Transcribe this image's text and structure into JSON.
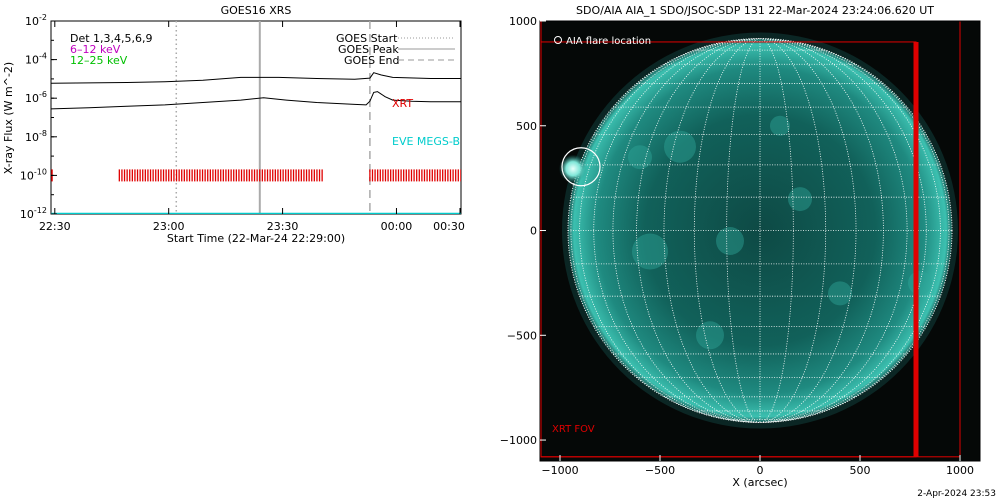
{
  "goes_chart": {
    "title": "GOES16 XRS",
    "xlabel": "Start Time (22-Mar-24 22:29:00)",
    "ylabel": "X-ray Flux (W m^-2)",
    "x_ticks": [
      "22:30",
      "23:00",
      "23:30",
      "00:00",
      "00:30"
    ],
    "y_ticks": [
      "10^-2",
      "10^-4",
      "10^-6",
      "10^-8",
      "10^-10",
      "10^-12"
    ],
    "det_label": "Det 1,3,4,5,6,9",
    "band_labels": [
      {
        "text": "6–12 keV",
        "color": "#c000c0"
      },
      {
        "text": "12–25 keV",
        "color": "#00c000"
      }
    ],
    "legend": [
      "GOES Start",
      "GOES Peak",
      "GOES End"
    ],
    "xrt_label": "XRT",
    "eve_label": "EVE MEGS-B"
  },
  "aia_chart": {
    "title": "SDO/AIA AIA_1 SDO/JSOC-SDP 131 22-Mar-2024 23:24:06.620 UT",
    "xlabel": "X (arcsec)",
    "x_ticks": [
      "−1000",
      "−500",
      "0",
      "500",
      "1000"
    ],
    "y_ticks": [
      "1000",
      "500",
      "0",
      "−500",
      "−1000"
    ],
    "flare_label": "AIA flare location",
    "fov_label": "XRT FOV"
  },
  "footer_date": "2-Apr-2024 23:53",
  "chart_data": [
    {
      "type": "line",
      "title": "GOES16 XRS",
      "xlabel": "Start Time (22-Mar-24 22:29:00)",
      "ylabel": "X-ray Flux (W m^-2)",
      "x_unit": "minutes after 22:29",
      "y_scale": "log",
      "ylim": [
        1e-12,
        0.01
      ],
      "xlim": [
        0,
        108
      ],
      "x_ticks": [
        {
          "label": "22:30",
          "x": 1
        },
        {
          "label": "23:00",
          "x": 31
        },
        {
          "label": "23:30",
          "x": 61
        },
        {
          "label": "00:00",
          "x": 91
        },
        {
          "label": "00:30",
          "x": 121
        }
      ],
      "vlines": [
        {
          "name": "GOES Start",
          "x": 33,
          "style": "dotted",
          "color": "#aaaaaa"
        },
        {
          "name": "GOES Peak",
          "x": 55,
          "style": "solid",
          "color": "#aaaaaa"
        },
        {
          "name": "GOES End",
          "x": 84,
          "style": "dashed",
          "color": "#aaaaaa"
        }
      ],
      "series": [
        {
          "name": "upper",
          "color": "#000000",
          "points": [
            [
              0,
              6e-06
            ],
            [
              10,
              6.2e-06
            ],
            [
              20,
              6.5e-06
            ],
            [
              30,
              7.2e-06
            ],
            [
              40,
              8.5e-06
            ],
            [
              50,
              1.2e-05
            ],
            [
              60,
              1.2e-05
            ],
            [
              70,
              1.05e-05
            ],
            [
              80,
              9.5e-06
            ],
            [
              84,
              1.1e-05
            ],
            [
              85,
              2.1e-05
            ],
            [
              87,
              1.6e-05
            ],
            [
              90,
              1.2e-05
            ],
            [
              100,
              1.05e-05
            ],
            [
              108,
              1.05e-05
            ]
          ]
        },
        {
          "name": "lower",
          "color": "#000000",
          "points": [
            [
              0,
              2.8e-07
            ],
            [
              10,
              3.2e-07
            ],
            [
              20,
              3.8e-07
            ],
            [
              30,
              4.5e-07
            ],
            [
              40,
              6e-07
            ],
            [
              50,
              8e-07
            ],
            [
              56,
              1.05e-06
            ],
            [
              62,
              8e-07
            ],
            [
              70,
              6e-07
            ],
            [
              80,
              4.8e-07
            ],
            [
              83,
              4.5e-07
            ],
            [
              84,
              7e-07
            ],
            [
              85,
              2e-06
            ],
            [
              86,
              2.2e-06
            ],
            [
              88,
              1.2e-06
            ],
            [
              90,
              8e-07
            ],
            [
              95,
              7e-07
            ],
            [
              100,
              6.5e-07
            ],
            [
              108,
              6.5e-07
            ]
          ]
        },
        {
          "name": "EVE MEGS-B",
          "color": "#00cccc",
          "points": [
            [
              0,
              1e-12
            ],
            [
              108,
              1e-12
            ]
          ]
        }
      ],
      "xrt_coverage": [
        [
          0,
          0.5
        ],
        [
          18,
          72
        ],
        [
          84,
          108
        ]
      ],
      "xrt_level": 1e-10
    },
    {
      "type": "image",
      "title": "SDO/AIA AIA_1 SDO/JSOC-SDP 131 22-Mar-2024 23:24:06.620 UT",
      "xlabel": "X (arcsec)",
      "xlim": [
        -1100,
        1100
      ],
      "ylim": [
        -1100,
        1000
      ],
      "solar_radius": 960,
      "flare_location": [
        -935,
        295
      ],
      "xrt_fov": {
        "x": [
          -1100,
          1000
        ],
        "y": [
          -1080,
          1020
        ]
      },
      "xrt_fov_edge_x": 780
    }
  ]
}
